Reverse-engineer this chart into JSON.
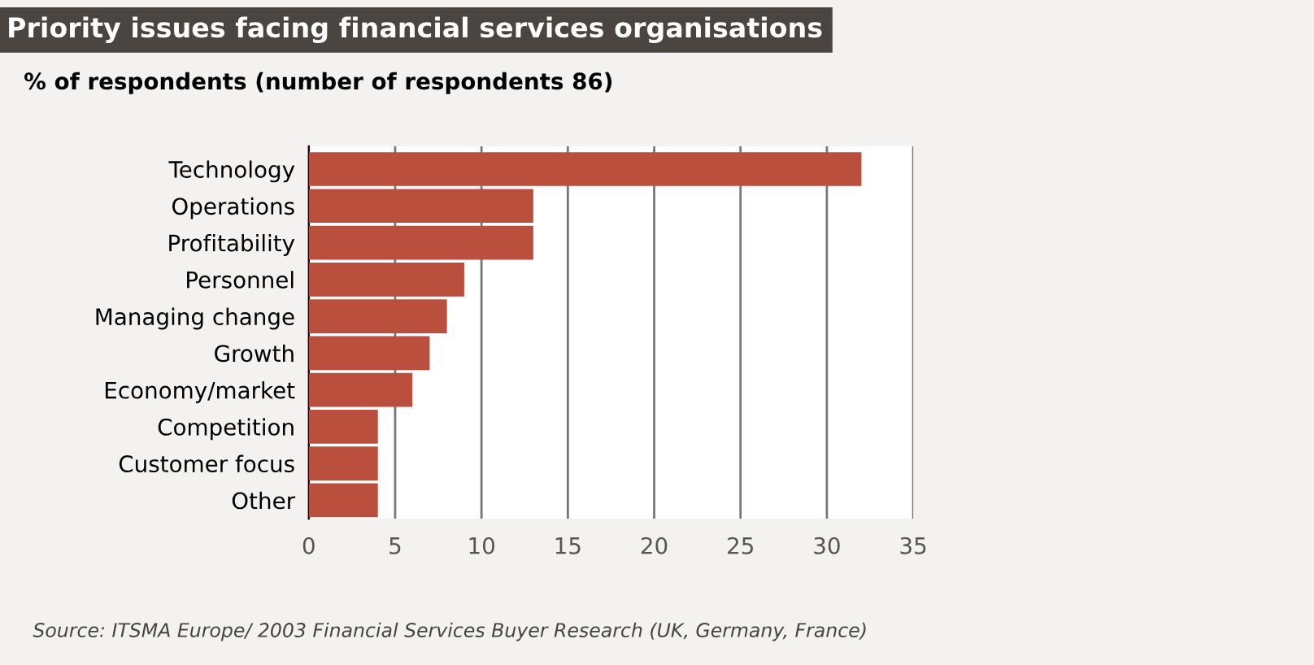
{
  "chart_data": {
    "type": "bar",
    "orientation": "horizontal",
    "title": "Priority issues facing financial services organisations",
    "subtitle": "% of respondents (number of respondents 86)",
    "categories": [
      "Technology",
      "Operations",
      "Profitability",
      "Personnel",
      "Managing change",
      "Growth",
      "Economy/market",
      "Competition",
      "Customer focus",
      "Other"
    ],
    "values": [
      32,
      13,
      13,
      9,
      8,
      7,
      6,
      4,
      4,
      4
    ],
    "color": "#bb4f3d",
    "xlim": [
      0,
      35
    ],
    "xticks": [
      0,
      5,
      10,
      15,
      20,
      25,
      30,
      35
    ],
    "grid": "x",
    "annotations": [
      "Source: ITSMA Europe/ 2003 Financial Services Buyer Research (UK, Germany, France)"
    ]
  }
}
